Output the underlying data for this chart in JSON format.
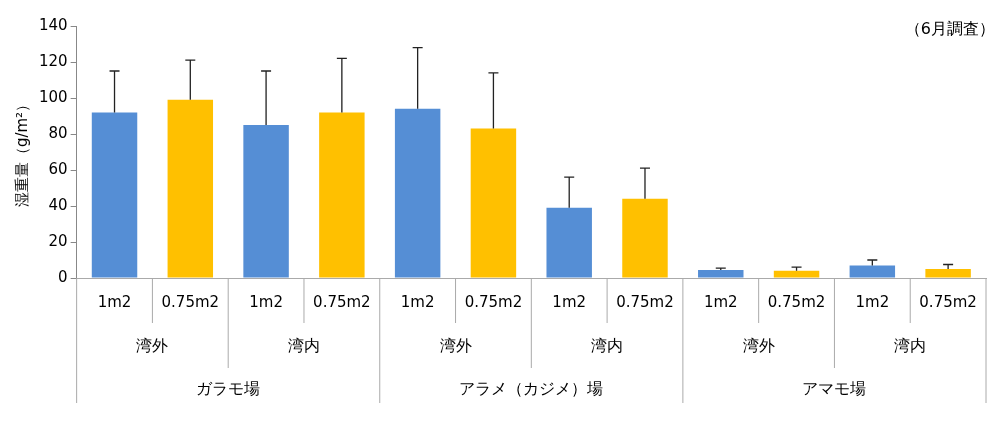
{
  "chart_data": {
    "type": "bar",
    "ylabel": "湿重量（g/m²）",
    "categories": [
      "1m2",
      "0.75m2",
      "1m2",
      "0.75m2",
      "1m2",
      "0.75m2",
      "1m2",
      "0.75m2",
      "1m2",
      "0.75m2",
      "1m2",
      "0.75m2"
    ],
    "values": [
      92,
      99,
      85,
      92,
      94,
      83,
      39,
      44,
      4.5,
      4,
      7,
      5
    ],
    "colors": [
      "#558ed5",
      "#ffc000",
      "#558ed5",
      "#ffc000",
      "#558ed5",
      "#ffc000",
      "#558ed5",
      "#ffc000",
      "#558ed5",
      "#ffc000",
      "#558ed5",
      "#ffc000"
    ],
    "errors": [
      [
        92,
        115
      ],
      [
        99,
        121
      ],
      [
        85,
        115
      ],
      [
        92,
        122
      ],
      [
        94,
        128
      ],
      [
        83,
        114
      ],
      [
        39,
        56
      ],
      [
        44,
        61
      ],
      [
        4.5,
        5.5
      ],
      [
        4,
        6
      ],
      [
        7,
        10
      ],
      [
        5,
        7.5
      ]
    ],
    "ylim": [
      0,
      140
    ],
    "yticks": [
      0,
      20,
      40,
      60,
      80,
      100,
      120,
      140
    ],
    "grid": false,
    "legend": false,
    "annotations": [
      "（6月調査）",
      "湾外",
      "湾内",
      "湾外",
      "湾内",
      "湾外",
      "湾内",
      "ガラモ場",
      "アラメ（カジメ）場",
      "アマモ場"
    ]
  }
}
